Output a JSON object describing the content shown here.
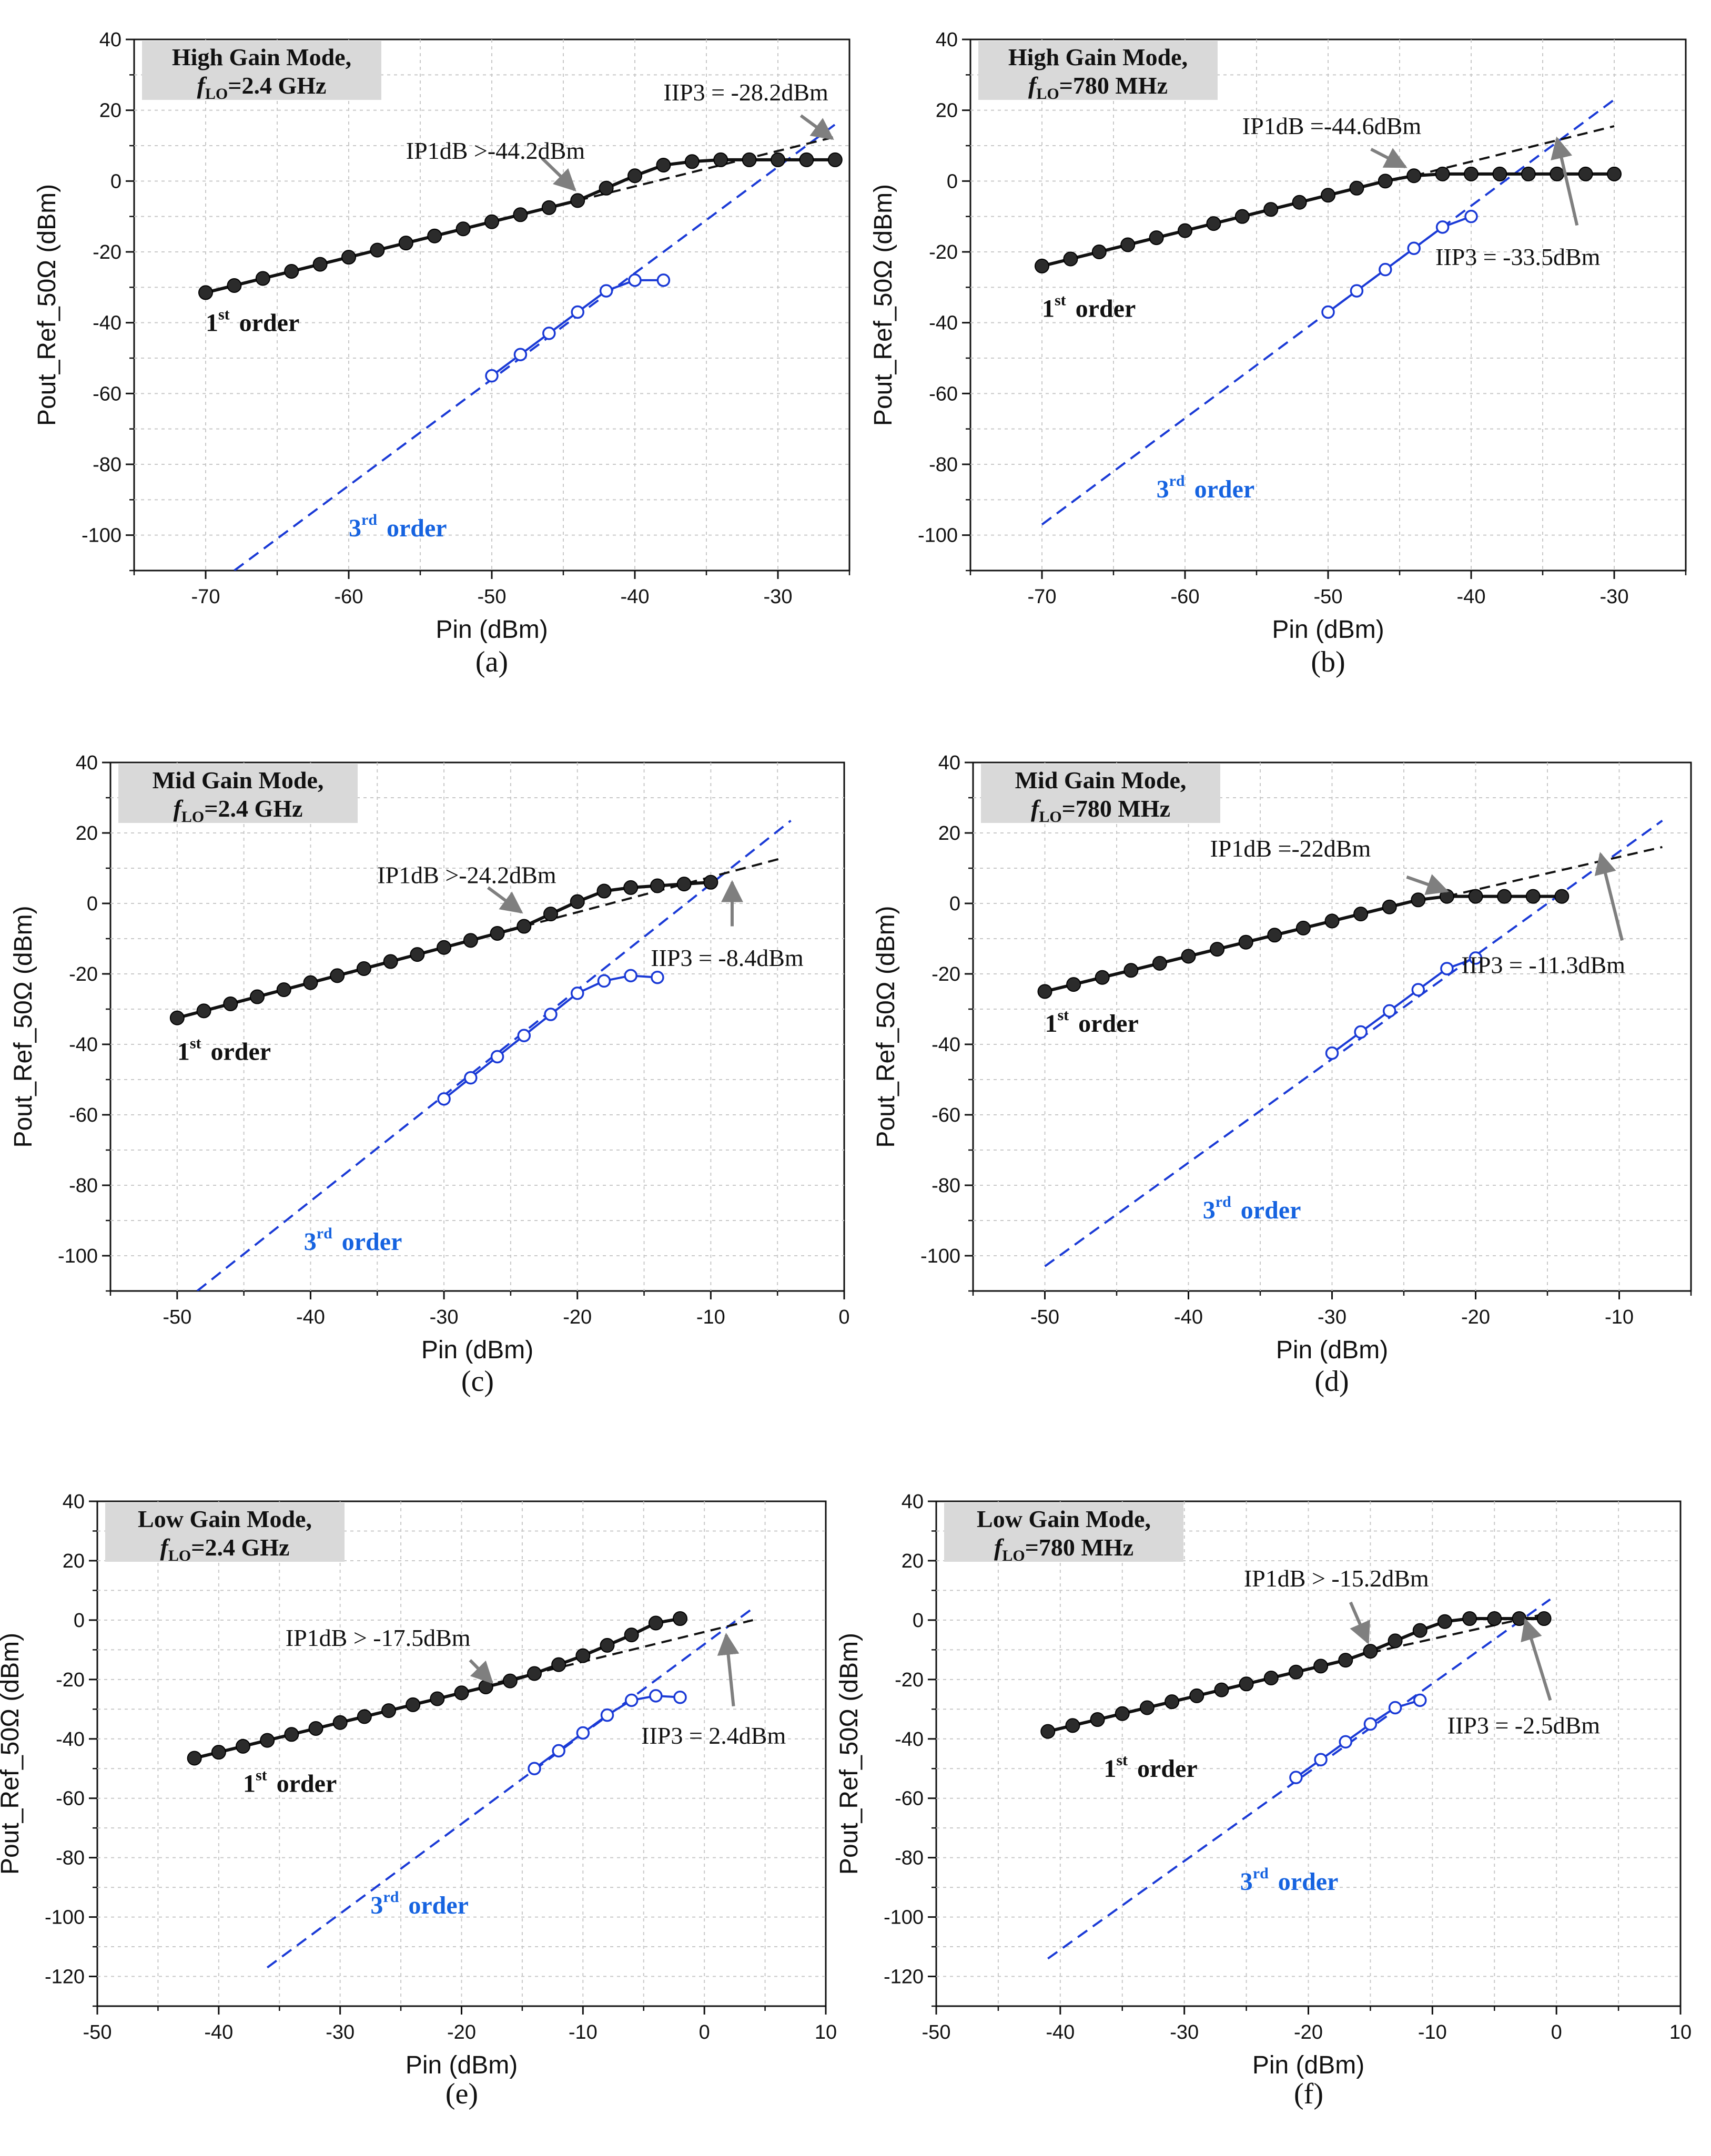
{
  "figure": {
    "background": "#ffffff"
  },
  "colors": {
    "first_order": "#111111",
    "third_order": "#1a3ad6",
    "third_label": "#1663e0",
    "fit": "#111111",
    "box": "#d9d9d9",
    "arrow": "#7f7f7f"
  },
  "chart_data": [
    {
      "id": "a",
      "type": "line",
      "caption": "(a)",
      "mode_label": "High Gain Mode,",
      "flo_label": "=2.4 GHz",
      "xlabel": "Pin (dBm)",
      "ylabel": "Pout_Ref_50Ω (dBm)",
      "xlim": [
        -75,
        -25
      ],
      "ylim": [
        -110,
        40
      ],
      "xticks": [
        -70,
        -60,
        -50,
        -40,
        -30
      ],
      "yticks": [
        -100,
        -80,
        -60,
        -40,
        -20,
        0,
        20,
        40
      ],
      "first_order": {
        "x": [
          -70,
          -68,
          -66,
          -64,
          -62,
          -60,
          -58,
          -56,
          -54,
          -52,
          -50,
          -48,
          -46,
          -44,
          -42,
          -40,
          -38,
          -36,
          -34,
          -32,
          -30,
          -28,
          -26
        ],
        "y": [
          -31.5,
          -29.5,
          -27.5,
          -25.5,
          -23.5,
          -21.5,
          -19.5,
          -17.5,
          -15.5,
          -13.5,
          -11.5,
          -9.5,
          -7.5,
          -5.5,
          -2,
          1.5,
          4.5,
          5.5,
          6,
          6,
          6,
          6,
          6
        ]
      },
      "third_order": {
        "x": [
          -50,
          -48,
          -46,
          -44,
          -42,
          -40,
          -38
        ],
        "y": [
          -55,
          -49,
          -43,
          -37,
          -31,
          -28,
          -28
        ]
      },
      "fit1": {
        "x": [
          -44,
          -26
        ],
        "y": [
          -5.5,
          12.5
        ]
      },
      "fit3": {
        "x": [
          -68,
          -26
        ],
        "y": [
          -110,
          16
        ]
      },
      "annotations": [
        {
          "text": "IIP3 = -28.2dBm",
          "x": -38,
          "y": 25
        },
        {
          "text": "IP1dB >-44.2dBm",
          "x": -56,
          "y": 8.5
        }
      ],
      "arrows": [
        [
          -28.4,
          18.5,
          -26.2,
          12
        ],
        [
          -46.5,
          6.5,
          -44.2,
          -2.5
        ]
      ],
      "order1_label": {
        "text": "1",
        "sup": "st",
        "rest": "order",
        "x": -70,
        "y": -40
      },
      "order3_label": {
        "text": "3",
        "sup": "rd",
        "rest": "order",
        "x": -60,
        "y": -98
      }
    },
    {
      "id": "b",
      "type": "line",
      "caption": "(b)",
      "mode_label": "High Gain Mode,",
      "flo_label": "=780 MHz",
      "xlabel": "Pin (dBm)",
      "ylabel": "Pout_Ref_50Ω (dBm)",
      "xlim": [
        -75,
        -25
      ],
      "ylim": [
        -110,
        40
      ],
      "xticks": [
        -70,
        -60,
        -50,
        -40,
        -30
      ],
      "yticks": [
        -100,
        -80,
        -60,
        -40,
        -20,
        0,
        20,
        40
      ],
      "first_order": {
        "x": [
          -70,
          -68,
          -66,
          -64,
          -62,
          -60,
          -58,
          -56,
          -54,
          -52,
          -50,
          -48,
          -46,
          -44,
          -42,
          -40,
          -38,
          -36,
          -34,
          -32,
          -30
        ],
        "y": [
          -24,
          -22,
          -20,
          -18,
          -16,
          -14,
          -12,
          -10,
          -8,
          -6,
          -4,
          -2,
          0,
          1.5,
          2,
          2,
          2,
          2,
          2,
          2,
          2
        ]
      },
      "third_order": {
        "x": [
          -50,
          -48,
          -46,
          -44,
          -42,
          -40
        ],
        "y": [
          -37,
          -31,
          -25,
          -19,
          -13,
          -10
        ]
      },
      "fit1": {
        "x": [
          -44,
          -30
        ],
        "y": [
          1.5,
          15.5
        ]
      },
      "fit3": {
        "x": [
          -70,
          -30
        ],
        "y": [
          -97,
          23
        ]
      },
      "annotations": [
        {
          "text": "IP1dB =-44.6dBm",
          "x": -56,
          "y": 15.5
        },
        {
          "text": "IIP3 = -33.5dBm",
          "x": -42.5,
          "y": -21.5
        }
      ],
      "arrows": [
        [
          -47,
          9,
          -44.6,
          4
        ],
        [
          -32.6,
          -12.5,
          -34,
          12
        ]
      ],
      "order1_label": {
        "text": "1",
        "sup": "st",
        "rest": "order",
        "x": -70,
        "y": -36
      },
      "order3_label": {
        "text": "3",
        "sup": "rd",
        "rest": "order",
        "x": -62,
        "y": -87
      }
    },
    {
      "id": "c",
      "type": "line",
      "caption": "(c)",
      "mode_label": "Mid Gain Mode,",
      "flo_label": "=2.4 GHz",
      "xlabel": "Pin (dBm)",
      "ylabel": "Pout_Ref_50Ω (dBm)",
      "xlim": [
        -55,
        0
      ],
      "ylim": [
        -110,
        40
      ],
      "xticks": [
        -50,
        -40,
        -30,
        -20,
        -10,
        0
      ],
      "yticks": [
        -100,
        -80,
        -60,
        -40,
        -20,
        0,
        20,
        40
      ],
      "first_order": {
        "x": [
          -50,
          -48,
          -46,
          -44,
          -42,
          -40,
          -38,
          -36,
          -34,
          -32,
          -30,
          -28,
          -26,
          -24,
          -22,
          -20,
          -18,
          -16,
          -14,
          -12,
          -10
        ],
        "y": [
          -32.5,
          -30.5,
          -28.5,
          -26.5,
          -24.5,
          -22.5,
          -20.5,
          -18.5,
          -16.5,
          -14.5,
          -12.5,
          -10.5,
          -8.5,
          -6.5,
          -3,
          0.5,
          3.5,
          4.5,
          5,
          5.5,
          6
        ]
      },
      "third_order": {
        "x": [
          -30,
          -28,
          -26,
          -24,
          -22,
          -20,
          -18,
          -16,
          -14
        ],
        "y": [
          -55.5,
          -49.5,
          -43.5,
          -37.5,
          -31.5,
          -25.5,
          -22,
          -20.5,
          -21
        ]
      },
      "fit1": {
        "x": [
          -24,
          -4.5
        ],
        "y": [
          -6.5,
          13
        ]
      },
      "fit3": {
        "x": [
          -48.5,
          -4
        ],
        "y": [
          -110,
          23.5
        ]
      },
      "annotations": [
        {
          "text": "IP1dB >-24.2dBm",
          "x": -35,
          "y": 8
        },
        {
          "text": "IIP3 = -8.4dBm",
          "x": -14.5,
          "y": -15.5
        }
      ],
      "arrows": [
        [
          -26.7,
          4.5,
          -24.2,
          -2.5
        ],
        [
          -8.4,
          -6.5,
          -8.4,
          6
        ]
      ],
      "order1_label": {
        "text": "1",
        "sup": "st",
        "rest": "order",
        "x": -50,
        "y": -42
      },
      "order3_label": {
        "text": "3",
        "sup": "rd",
        "rest": "order",
        "x": -40.5,
        "y": -96
      }
    },
    {
      "id": "d",
      "type": "line",
      "caption": "(d)",
      "mode_label": "Mid Gain Mode,",
      "flo_label": "=780 MHz",
      "xlabel": "Pin (dBm)",
      "ylabel": "Pout_Ref_50Ω (dBm)",
      "xlim": [
        -55,
        -5
      ],
      "ylim": [
        -110,
        40
      ],
      "xticks": [
        -50,
        -40,
        -30,
        -20,
        -10
      ],
      "yticks": [
        -100,
        -80,
        -60,
        -40,
        -20,
        0,
        20,
        40
      ],
      "first_order": {
        "x": [
          -50,
          -48,
          -46,
          -44,
          -42,
          -40,
          -38,
          -36,
          -34,
          -32,
          -30,
          -28,
          -26,
          -24,
          -22,
          -20,
          -18,
          -16,
          -14
        ],
        "y": [
          -25,
          -23,
          -21,
          -19,
          -17,
          -15,
          -13,
          -11,
          -9,
          -7,
          -5,
          -3,
          -1,
          1,
          2,
          2,
          2,
          2,
          2
        ]
      },
      "third_order": {
        "x": [
          -30,
          -28,
          -26,
          -24,
          -22,
          -20
        ],
        "y": [
          -42.5,
          -36.5,
          -30.5,
          -24.5,
          -18.5,
          -15.5
        ]
      },
      "fit1": {
        "x": [
          -22,
          -7
        ],
        "y": [
          2,
          16
        ]
      },
      "fit3": {
        "x": [
          -50,
          -7
        ],
        "y": [
          -103,
          23.5
        ]
      },
      "annotations": [
        {
          "text": "IP1dB =-22dBm",
          "x": -38.5,
          "y": 15.5
        },
        {
          "text": "IIP3 = -11.3dBm",
          "x": -21,
          "y": -17.5
        }
      ],
      "arrows": [
        [
          -24.8,
          7.5,
          -22,
          3.5
        ],
        [
          -9.8,
          -10.5,
          -11.3,
          14
        ]
      ],
      "order1_label": {
        "text": "1",
        "sup": "st",
        "rest": "order",
        "x": -50,
        "y": -34
      },
      "order3_label": {
        "text": "3",
        "sup": "rd",
        "rest": "order",
        "x": -39,
        "y": -87
      }
    },
    {
      "id": "e",
      "type": "line",
      "caption": "(e)",
      "mode_label": "Low Gain Mode,",
      "flo_label": "=2.4 GHz",
      "xlabel": "Pin (dBm)",
      "ylabel": "Pout_Ref_50Ω (dBm)",
      "xlim": [
        -50,
        10
      ],
      "ylim": [
        -130,
        40
      ],
      "xticks": [
        -50,
        -40,
        -30,
        -20,
        -10,
        0,
        10
      ],
      "yticks": [
        -120,
        -100,
        -80,
        -60,
        -40,
        -20,
        0,
        20,
        40
      ],
      "first_order": {
        "x": [
          -42,
          -40,
          -38,
          -36,
          -34,
          -32,
          -30,
          -28,
          -26,
          -24,
          -22,
          -20,
          -18,
          -16,
          -14,
          -12,
          -10,
          -8,
          -6,
          -4,
          -2
        ],
        "y": [
          -46.5,
          -44.5,
          -42.5,
          -40.5,
          -38.5,
          -36.5,
          -34.5,
          -32.5,
          -30.5,
          -28.5,
          -26.5,
          -24.5,
          -22.5,
          -20.5,
          -18,
          -15,
          -12,
          -8.5,
          -5,
          -1,
          0.5
        ]
      },
      "third_order": {
        "x": [
          -14,
          -12,
          -10,
          -8,
          -6,
          -4,
          -2
        ],
        "y": [
          -50,
          -44,
          -38,
          -32,
          -27,
          -25.5,
          -26
        ]
      },
      "fit1": {
        "x": [
          -17,
          4
        ],
        "y": [
          -21,
          0
        ]
      },
      "fit3": {
        "x": [
          -36,
          4
        ],
        "y": [
          -117,
          4
        ]
      },
      "annotations": [
        {
          "text": "IP1dB > -17.5dBm",
          "x": -34.5,
          "y": -6
        },
        {
          "text": "IIP3 = 2.4dBm",
          "x": -5.2,
          "y": -39
        }
      ],
      "arrows": [
        [
          -19.3,
          -13.5,
          -17.5,
          -21
        ],
        [
          2.4,
          -29,
          1.8,
          -5
        ]
      ],
      "order1_label": {
        "text": "1",
        "sup": "st",
        "rest": "order",
        "x": -38,
        "y": -55
      },
      "order3_label": {
        "text": "3",
        "sup": "rd",
        "rest": "order",
        "x": -27.5,
        "y": -96
      }
    },
    {
      "id": "f",
      "type": "line",
      "caption": "(f)",
      "mode_label": "Low Gain Mode,",
      "flo_label": "=780 MHz",
      "xlabel": "Pin (dBm)",
      "ylabel": "Pout_Ref_50Ω (dBm)",
      "xlim": [
        -50,
        10
      ],
      "ylim": [
        -130,
        40
      ],
      "xticks": [
        -50,
        -40,
        -30,
        -20,
        -10,
        0,
        10
      ],
      "yticks": [
        -120,
        -100,
        -80,
        -60,
        -40,
        -20,
        0,
        20,
        40
      ],
      "first_order": {
        "x": [
          -41,
          -39,
          -37,
          -35,
          -33,
          -31,
          -29,
          -27,
          -25,
          -23,
          -21,
          -19,
          -17,
          -15,
          -13,
          -11,
          -9,
          -7,
          -5,
          -3,
          -1
        ],
        "y": [
          -37.5,
          -35.5,
          -33.5,
          -31.5,
          -29.5,
          -27.5,
          -25.5,
          -23.5,
          -21.5,
          -19.5,
          -17.5,
          -15.5,
          -13.5,
          -10.5,
          -7,
          -3.5,
          -0.5,
          0.5,
          0.5,
          0.5,
          0.5
        ]
      },
      "third_order": {
        "x": [
          -21,
          -19,
          -17,
          -15,
          -13,
          -11
        ],
        "y": [
          -53,
          -47,
          -41,
          -35,
          -29.5,
          -27
        ]
      },
      "fit1": {
        "x": [
          -15,
          -1
        ],
        "y": [
          -11,
          2
        ]
      },
      "fit3": {
        "x": [
          -41,
          -0.5
        ],
        "y": [
          -114,
          7
        ]
      },
      "annotations": [
        {
          "text": "IP1dB > -15.2dBm",
          "x": -25.2,
          "y": 14
        },
        {
          "text": "IIP3 = -2.5dBm",
          "x": -8.8,
          "y": -35.5
        }
      ],
      "arrows": [
        [
          -16.6,
          6,
          -15.2,
          -7.5
        ],
        [
          -0.5,
          -27,
          -2.5,
          0
        ]
      ],
      "order1_label": {
        "text": "1",
        "sup": "st",
        "rest": "order",
        "x": -36.5,
        "y": -50
      },
      "order3_label": {
        "text": "3",
        "sup": "rd",
        "rest": "order",
        "x": -25.5,
        "y": -88
      }
    }
  ]
}
